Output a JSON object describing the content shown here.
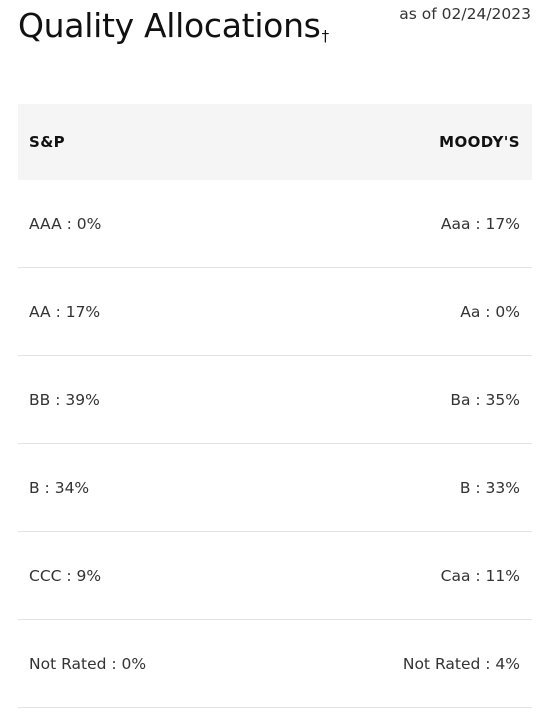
{
  "header": {
    "title": "Quality Allocations",
    "dagger": "†",
    "as_of": "as of 02/24/2023"
  },
  "table": {
    "columns": [
      "S&P",
      "MOODY'S"
    ],
    "rows": [
      [
        "AAA : 0%",
        "Aaa : 17%"
      ],
      [
        "AA : 17%",
        "Aa : 0%"
      ],
      [
        "BB : 39%",
        "Ba : 35%"
      ],
      [
        "B : 34%",
        "B : 33%"
      ],
      [
        "CCC : 9%",
        "Caa : 11%"
      ],
      [
        "Not Rated : 0%",
        "Not Rated : 4%"
      ]
    ]
  }
}
